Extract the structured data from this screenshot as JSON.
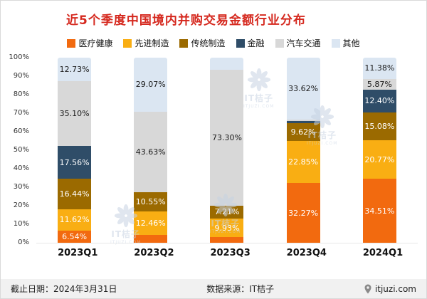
{
  "title": "近5个季度中国境内并购交易金额行业分布",
  "chart_data": {
    "type": "bar",
    "subtype": "stacked-100-percent",
    "title": "近5个季度中国境内并购交易金额行业分布",
    "categories": [
      "2023Q1",
      "2023Q2",
      "2023Q3",
      "2023Q4",
      "2024Q1"
    ],
    "series": [
      {
        "name": "医疗健康",
        "color": "#f26a0f",
        "text_color": "#ffffff",
        "values": [
          6.54,
          4.29,
          3.06,
          32.27,
          34.51
        ],
        "labels": [
          "6.54%",
          "",
          "",
          "32.27%",
          "34.51%"
        ]
      },
      {
        "name": "先进制造",
        "color": "#f9ae13",
        "text_color": "#ffffff",
        "values": [
          11.62,
          12.46,
          9.93,
          22.85,
          20.77
        ],
        "labels": [
          "11.62%",
          "12.46%",
          "9.93%",
          "22.85%",
          "20.77%"
        ]
      },
      {
        "name": "传统制造",
        "color": "#9b6a00",
        "text_color": "#ffffff",
        "values": [
          16.44,
          10.55,
          7.21,
          9.62,
          15.08
        ],
        "labels": [
          "16.44%",
          "10.55%",
          "7.21%",
          "9.62%",
          "15.08%"
        ]
      },
      {
        "name": "金融",
        "color": "#2f4d68",
        "text_color": "#ffffff",
        "values": [
          17.56,
          0,
          0,
          1.0,
          12.4
        ],
        "labels": [
          "17.56%",
          "",
          "",
          "",
          "12.40%"
        ]
      },
      {
        "name": "汽车交通",
        "color": "#d8d8d8",
        "text_color": "#1a1a1a",
        "values": [
          35.1,
          43.63,
          73.3,
          0.64,
          5.87
        ],
        "labels": [
          "35.10%",
          "43.63%",
          "73.30%",
          "",
          "5.87%"
        ]
      },
      {
        "name": "其他",
        "color": "#dbe6f2",
        "text_color": "#1a1a1a",
        "values": [
          12.73,
          29.07,
          6.5,
          33.62,
          11.38
        ],
        "labels": [
          "12.73%",
          "29.07%",
          "",
          "33.62%",
          "11.38%"
        ]
      }
    ],
    "yticks": [
      "100%",
      "90%",
      "80%",
      "70%",
      "60%",
      "50%",
      "40%",
      "30%",
      "20%",
      "10%",
      "0%"
    ],
    "ylim": [
      0,
      100
    ],
    "grid": false,
    "legend_position": "top"
  },
  "watermark": {
    "logo": "IT桔子",
    "sub": "ITJUZI.COM"
  },
  "footer": {
    "date": "截止日期：2024年3月31日",
    "source": "数据来源：IT桔子",
    "site": "itjuzi.com"
  },
  "icons": {
    "site": "location-pin-icon"
  },
  "colors": {
    "title": "#d5281e",
    "footer_bg": "#f1f1f1"
  }
}
